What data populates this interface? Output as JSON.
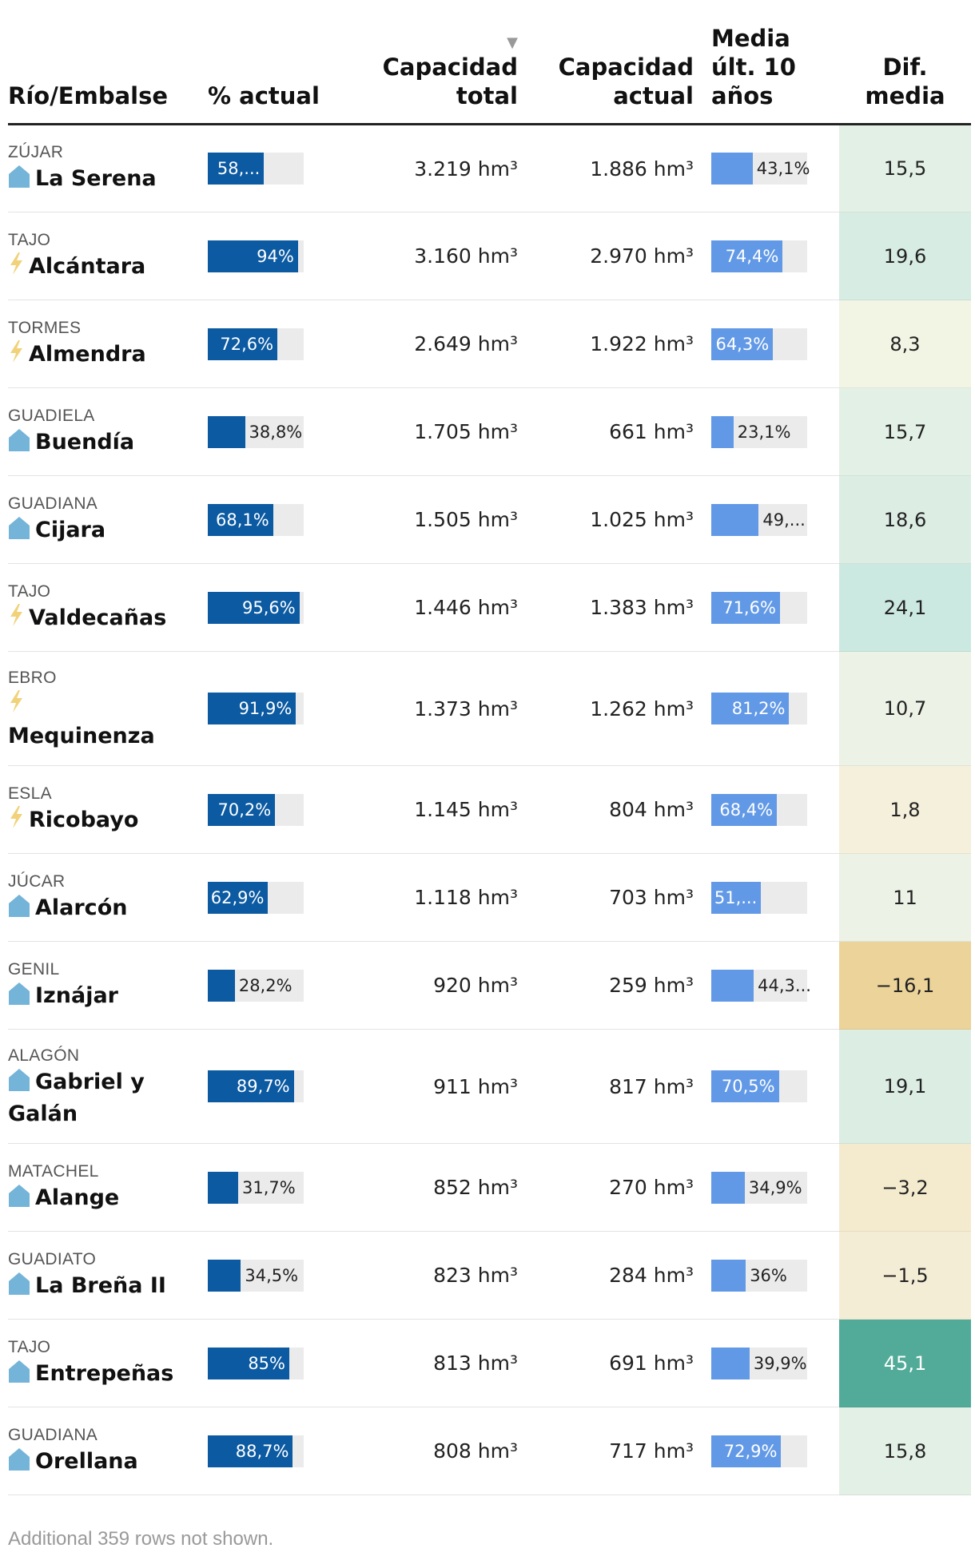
{
  "headers": {
    "name": "Río/Embalse",
    "pct": "% actual",
    "total_l1": "Capacidad",
    "total_l2": "total",
    "actual_l1": "Capacidad",
    "actual_l2": "actual",
    "avg_l1": "Media",
    "avg_l2": "últ. 10",
    "avg_l3": "años",
    "dif_l1": "Dif.",
    "dif_l2": "media",
    "sort_indicator": "▼"
  },
  "footer": "Additional 359 rows not shown.",
  "colors": {
    "bar_current": "#0b5aa2",
    "bar_average": "#6299e6",
    "bar_track": "#ebebeb",
    "icon_dam": "#74b4d8",
    "icon_hydro": "#f1d27a"
  },
  "chart_data": {
    "type": "table",
    "columns": [
      "Río/Embalse",
      "% actual",
      "Capacidad total",
      "Capacidad actual",
      "Media últ. 10 años",
      "Dif. media"
    ],
    "rows": [
      {
        "river": "ZÚJAR",
        "dam": "La Serena",
        "icon": "dam-icon",
        "pct": 58.6,
        "pct_label": "58,...",
        "total": "3.219 hm³",
        "actual": "1.886 hm³",
        "avg": 43.1,
        "avg_label": "43,1%",
        "dif": "15,5",
        "dif_color": "#e3f0e6"
      },
      {
        "river": "TAJO",
        "dam": "Alcántara",
        "icon": "lightning-icon",
        "pct": 94,
        "pct_label": "94%",
        "total": "3.160 hm³",
        "actual": "2.970 hm³",
        "avg": 74.4,
        "avg_label": "74,4%",
        "dif": "19,6",
        "dif_color": "#d7ece3"
      },
      {
        "river": "TORMES",
        "dam": "Almendra",
        "icon": "lightning-icon",
        "pct": 72.6,
        "pct_label": "72,6%",
        "total": "2.649 hm³",
        "actual": "1.922 hm³",
        "avg": 64.3,
        "avg_label": "64,3%",
        "dif": "8,3",
        "dif_color": "#f2f4e4"
      },
      {
        "river": "GUADIELA",
        "dam": "Buendía",
        "icon": "dam-icon",
        "pct": 38.8,
        "pct_label": "38,8%",
        "total": "1.705 hm³",
        "actual": "661 hm³",
        "avg": 23.1,
        "avg_label": "23,1%",
        "dif": "15,7",
        "dif_color": "#e3f0e6"
      },
      {
        "river": "GUADIANA",
        "dam": "Cijara",
        "icon": "dam-icon",
        "pct": 68.1,
        "pct_label": "68,1%",
        "total": "1.505 hm³",
        "actual": "1.025 hm³",
        "avg": 49.5,
        "avg_label": "49,...",
        "dif": "18,6",
        "dif_color": "#dcede4"
      },
      {
        "river": "TAJO",
        "dam": "Valdecañas",
        "icon": "lightning-icon",
        "pct": 95.6,
        "pct_label": "95,6%",
        "total": "1.446 hm³",
        "actual": "1.383 hm³",
        "avg": 71.6,
        "avg_label": "71,6%",
        "dif": "24,1",
        "dif_color": "#cce9e1"
      },
      {
        "river": "EBRO",
        "dam": "Mequinenza",
        "icon": "lightning-icon",
        "pct": 91.9,
        "pct_label": "91,9%",
        "total": "1.373 hm³",
        "actual": "1.262 hm³",
        "avg": 81.2,
        "avg_label": "81,2%",
        "dif": "10,7",
        "dif_color": "#ecf2e5"
      },
      {
        "river": "ESLA",
        "dam": "Ricobayo",
        "icon": "lightning-icon",
        "pct": 70.2,
        "pct_label": "70,2%",
        "total": "1.145 hm³",
        "actual": "804 hm³",
        "avg": 68.4,
        "avg_label": "68,4%",
        "dif": "1,8",
        "dif_color": "#f5f0dc"
      },
      {
        "river": "JÚCAR",
        "dam": "Alarcón",
        "icon": "dam-icon",
        "pct": 62.9,
        "pct_label": "62,9%",
        "total": "1.118 hm³",
        "actual": "703 hm³",
        "avg": 51.9,
        "avg_label": "51,...",
        "dif": "11",
        "dif_color": "#ecf2e5"
      },
      {
        "river": "GENIL",
        "dam": "Iznájar",
        "icon": "dam-icon",
        "pct": 28.2,
        "pct_label": "28,2%",
        "total": "920 hm³",
        "actual": "259 hm³",
        "avg": 44.3,
        "avg_label": "44,3...",
        "dif": "−16,1",
        "dif_color": "#ebd399"
      },
      {
        "river": "ALAGÓN",
        "dam": "Gabriel y Galán",
        "icon": "dam-icon",
        "pct": 89.7,
        "pct_label": "89,7%",
        "total": "911 hm³",
        "actual": "817 hm³",
        "avg": 70.5,
        "avg_label": "70,5%",
        "dif": "19,1",
        "dif_color": "#dcede4"
      },
      {
        "river": "MATACHEL",
        "dam": "Alange",
        "icon": "dam-icon",
        "pct": 31.7,
        "pct_label": "31,7%",
        "total": "852 hm³",
        "actual": "270 hm³",
        "avg": 34.9,
        "avg_label": "34,9%",
        "dif": "−3,2",
        "dif_color": "#f4ebcf"
      },
      {
        "river": "GUADIATO",
        "dam": "La Breña II",
        "icon": "dam-icon",
        "pct": 34.5,
        "pct_label": "34,5%",
        "total": "823 hm³",
        "actual": "284 hm³",
        "avg": 36,
        "avg_label": "36%",
        "dif": "−1,5",
        "dif_color": "#f4edd6"
      },
      {
        "river": "TAJO",
        "dam": "Entrepeñas",
        "icon": "dam-icon",
        "pct": 85,
        "pct_label": "85%",
        "total": "813 hm³",
        "actual": "691 hm³",
        "avg": 39.9,
        "avg_label": "39,9%",
        "dif": "45,1",
        "dif_color": "#52ab99"
      },
      {
        "river": "GUADIANA",
        "dam": "Orellana",
        "icon": "dam-icon",
        "pct": 88.7,
        "pct_label": "88,7%",
        "total": "808 hm³",
        "actual": "717 hm³",
        "avg": 72.9,
        "avg_label": "72,9%",
        "dif": "15,8",
        "dif_color": "#e3f0e6"
      }
    ]
  }
}
